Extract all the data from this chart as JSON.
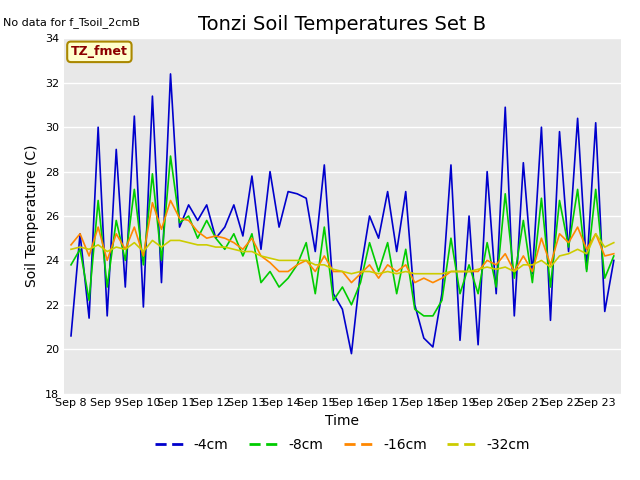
{
  "title": "Tonzi Soil Temperatures Set B",
  "xlabel": "Time",
  "ylabel": "Soil Temperature (C)",
  "no_data_label": "No data for f_Tsoil_2cmB",
  "tz_label": "TZ_fmet",
  "ylim": [
    18,
    34
  ],
  "yticks": [
    18,
    20,
    22,
    24,
    26,
    28,
    30,
    32,
    34
  ],
  "xtick_labels": [
    "Sep 8",
    "Sep 9",
    "Sep 10",
    "Sep 11",
    "Sep 12",
    "Sep 13",
    "Sep 14",
    "Sep 15",
    "Sep 16",
    "Sep 17",
    "Sep 18",
    "Sep 19",
    "Sep 20",
    "Sep 21",
    "Sep 22",
    "Sep 23"
  ],
  "xtick_pos": [
    0,
    1,
    2,
    3,
    4,
    5,
    6,
    7,
    8,
    9,
    10,
    11,
    12,
    13,
    14,
    15
  ],
  "line_colors": [
    "#0000cc",
    "#00cc00",
    "#ff8800",
    "#cccc00"
  ],
  "line_labels": [
    "-4cm",
    "-8cm",
    "-16cm",
    "-32cm"
  ],
  "bg_color": "#e8e8e8",
  "fig_bg": "#ffffff",
  "title_fontsize": 14,
  "axis_fontsize": 10,
  "tick_fontsize": 8,
  "legend_fontsize": 10,
  "t4cm": [
    20.6,
    25.2,
    21.4,
    30.0,
    21.5,
    29.0,
    22.8,
    30.5,
    21.9,
    31.4,
    23.0,
    32.4,
    25.5,
    26.5,
    25.8,
    26.5,
    25.0,
    25.5,
    26.5,
    25.1,
    27.8,
    24.5,
    28.0,
    25.5,
    27.1,
    27.0,
    26.8,
    24.4,
    28.3,
    22.5,
    21.8,
    19.8,
    23.5,
    26.0,
    25.0,
    27.1,
    24.4,
    27.1,
    22.0,
    20.5,
    20.1,
    22.5,
    28.3,
    20.4,
    26.0,
    20.2,
    28.0,
    22.5,
    30.9,
    21.5,
    28.4,
    23.4,
    30.0,
    21.3,
    29.8,
    24.4,
    30.4,
    23.6,
    30.2,
    21.7,
    24.0
  ],
  "t8cm": [
    23.8,
    24.5,
    22.2,
    26.7,
    22.8,
    25.8,
    24.0,
    27.2,
    23.8,
    27.9,
    24.0,
    28.7,
    25.7,
    26.0,
    25.0,
    25.8,
    25.0,
    24.5,
    25.2,
    24.2,
    25.2,
    23.0,
    23.5,
    22.8,
    23.2,
    23.8,
    24.8,
    22.5,
    25.5,
    22.2,
    22.8,
    22.0,
    23.0,
    24.8,
    23.5,
    24.8,
    22.5,
    24.5,
    21.8,
    21.5,
    21.5,
    22.2,
    25.0,
    22.5,
    23.8,
    22.5,
    24.8,
    22.8,
    27.0,
    23.2,
    25.8,
    23.0,
    26.8,
    22.8,
    26.7,
    24.6,
    27.2,
    23.5,
    27.2,
    23.2,
    24.2
  ],
  "t16cm": [
    24.7,
    25.2,
    24.2,
    25.5,
    24.0,
    25.2,
    24.5,
    25.5,
    24.2,
    26.6,
    25.4,
    26.7,
    25.9,
    25.8,
    25.3,
    25.0,
    25.1,
    25.0,
    24.8,
    24.5,
    25.0,
    24.2,
    23.9,
    23.5,
    23.5,
    23.8,
    24.0,
    23.5,
    24.2,
    23.5,
    23.5,
    23.0,
    23.4,
    23.8,
    23.2,
    23.8,
    23.5,
    23.8,
    23.0,
    23.2,
    23.0,
    23.2,
    23.5,
    23.5,
    23.5,
    23.5,
    24.0,
    23.8,
    24.3,
    23.5,
    24.2,
    23.5,
    25.0,
    23.8,
    25.2,
    24.8,
    25.5,
    24.5,
    25.2,
    24.2,
    24.3
  ],
  "t32cm": [
    24.5,
    24.6,
    24.5,
    24.7,
    24.4,
    24.6,
    24.5,
    24.8,
    24.4,
    24.9,
    24.6,
    24.9,
    24.9,
    24.8,
    24.7,
    24.7,
    24.6,
    24.6,
    24.5,
    24.4,
    24.4,
    24.2,
    24.1,
    24.0,
    24.0,
    24.0,
    24.0,
    23.8,
    23.8,
    23.6,
    23.5,
    23.4,
    23.5,
    23.5,
    23.4,
    23.5,
    23.4,
    23.5,
    23.4,
    23.4,
    23.4,
    23.4,
    23.5,
    23.5,
    23.5,
    23.6,
    23.7,
    23.6,
    23.7,
    23.5,
    23.8,
    23.8,
    24.0,
    23.7,
    24.2,
    24.3,
    24.5,
    24.3,
    25.2,
    24.6,
    24.8
  ]
}
